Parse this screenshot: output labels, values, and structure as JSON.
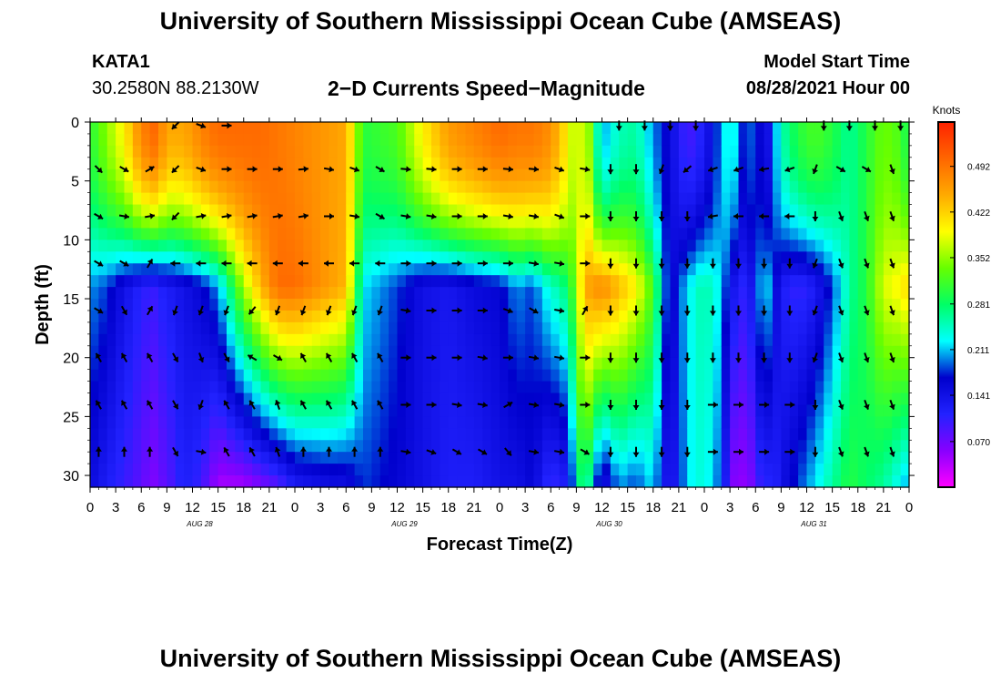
{
  "header": {
    "title": "University of Southern Mississippi Ocean Cube (AMSEAS)",
    "station": "KATA1",
    "coordinates": "30.2580N  88.2130W",
    "subtitle": "2−D Currents Speed−Magnitude",
    "start_label": "Model Start Time",
    "start_value": "08/28/2021 Hour 00"
  },
  "footer": {
    "title": "University of Southern Mississippi Ocean Cube (AMSEAS)"
  },
  "chart_data": {
    "type": "heatmap",
    "title": "2−D Currents Speed−Magnitude",
    "xlabel": "Forecast Time(Z)",
    "ylabel": "Depth (ft)",
    "xlim": [
      0,
      96
    ],
    "ylim": [
      0,
      31
    ],
    "x_ticks": [
      0,
      3,
      6,
      9,
      12,
      15,
      18,
      21,
      24,
      27,
      30,
      33,
      36,
      39,
      42,
      45,
      48,
      51,
      54,
      57,
      60,
      63,
      66,
      69,
      72,
      75,
      78,
      81,
      84,
      87,
      90,
      93,
      96
    ],
    "x_tick_labels": [
      "0",
      "3",
      "6",
      "9",
      "12",
      "15",
      "18",
      "21",
      "0",
      "3",
      "6",
      "9",
      "12",
      "15",
      "18",
      "21",
      "0",
      "3",
      "6",
      "9",
      "12",
      "15",
      "18",
      "21",
      "0",
      "3",
      "6",
      "9",
      "12",
      "15",
      "18",
      "21",
      "0"
    ],
    "date_labels": [
      {
        "x": 12,
        "label": "AUG 28"
      },
      {
        "x": 36,
        "label": "AUG 29"
      },
      {
        "x": 60,
        "label": "AUG 30"
      },
      {
        "x": 84,
        "label": "AUG 31"
      }
    ],
    "y_ticks": [
      0,
      5,
      10,
      15,
      20,
      25,
      30
    ],
    "y_tick_labels": [
      "0",
      "5",
      "10",
      "15",
      "20",
      "25",
      "30"
    ],
    "colorbar": {
      "title": "Knots",
      "range": [
        0,
        0.56
      ],
      "tick_labels": [
        "0.492",
        "0.422",
        "0.352",
        "0.281",
        "0.211",
        "0.141",
        "0.070"
      ],
      "tick_values": [
        0.492,
        0.422,
        0.352,
        0.281,
        0.211,
        0.141,
        0.07
      ],
      "colors": [
        "#ff00ff",
        "#8800ff",
        "#2222ff",
        "#0000cc",
        "#00ffff",
        "#00ff66",
        "#66ff00",
        "#ffff00",
        "#ffaa00",
        "#ff6600",
        "#ff2200"
      ]
    },
    "speed_profiles": {
      "x": [
        0,
        2,
        4,
        6,
        7.4,
        7.8,
        9,
        11,
        13,
        15,
        18,
        20,
        22,
        24,
        28,
        30,
        32,
        36,
        39,
        42,
        45,
        48,
        50,
        52,
        53,
        54,
        56,
        57,
        58,
        60,
        62,
        64,
        66,
        68,
        70,
        72,
        74,
        75,
        77,
        78,
        79,
        80,
        81,
        83,
        85,
        87,
        89,
        91,
        93,
        95,
        96
      ],
      "surface_knots": [
        0.3,
        0.35,
        0.4,
        0.48,
        0.5,
        0.5,
        0.45,
        0.45,
        0.48,
        0.5,
        0.5,
        0.5,
        0.49,
        0.48,
        0.46,
        0.45,
        0.3,
        0.32,
        0.4,
        0.46,
        0.48,
        0.5,
        0.49,
        0.49,
        0.48,
        0.47,
        0.4,
        0.35,
        0.4,
        0.2,
        0.25,
        0.26,
        0.2,
        0.15,
        0.09,
        0.12,
        0.2,
        0.25,
        0.15,
        0.22,
        0.1,
        0.18,
        0.25,
        0.3,
        0.32,
        0.3,
        0.26,
        0.3,
        0.34,
        0.32,
        0.28
      ],
      "middle_knots": [
        0.2,
        0.18,
        0.14,
        0.11,
        0.1,
        0.11,
        0.12,
        0.14,
        0.16,
        0.2,
        0.36,
        0.44,
        0.5,
        0.5,
        0.46,
        0.44,
        0.22,
        0.18,
        0.14,
        0.13,
        0.15,
        0.16,
        0.2,
        0.18,
        0.22,
        0.24,
        0.28,
        0.35,
        0.45,
        0.48,
        0.44,
        0.4,
        0.32,
        0.14,
        0.22,
        0.26,
        0.22,
        0.14,
        0.1,
        0.16,
        0.24,
        0.18,
        0.12,
        0.1,
        0.12,
        0.18,
        0.26,
        0.3,
        0.38,
        0.4,
        0.42
      ],
      "bottom_knots": [
        0.15,
        0.12,
        0.1,
        0.08,
        0.06,
        0.07,
        0.08,
        0.12,
        0.1,
        0.04,
        0.04,
        0.06,
        0.08,
        0.12,
        0.14,
        0.14,
        0.18,
        0.16,
        0.14,
        0.12,
        0.12,
        0.14,
        0.14,
        0.16,
        0.12,
        0.1,
        0.12,
        0.24,
        0.3,
        0.12,
        0.2,
        0.18,
        0.22,
        0.1,
        0.22,
        0.24,
        0.18,
        0.06,
        0.05,
        0.08,
        0.12,
        0.1,
        0.14,
        0.18,
        0.22,
        0.26,
        0.3,
        0.28,
        0.26,
        0.22,
        0.2
      ]
    },
    "vector_depths_ft": [
      4,
      8,
      12,
      16,
      20,
      24,
      28
    ],
    "vector_times": [
      1,
      4,
      7,
      10,
      13,
      16,
      19,
      22,
      25,
      28,
      31,
      34,
      37,
      40,
      43,
      46,
      49,
      52,
      55,
      58,
      61,
      64,
      67,
      70,
      73,
      76,
      79,
      82,
      85,
      88,
      91,
      94
    ],
    "surface_vector_times": [
      9,
      12,
      15,
      61,
      64,
      67,
      70,
      85,
      88,
      91,
      94
    ],
    "vector_direction_deg": [
      [
        135,
        120,
        60,
        225,
        110,
        90,
        90,
        90,
        85,
        100,
        110,
        120,
        95,
        95,
        90,
        90,
        95,
        95,
        110,
        100,
        180,
        180,
        200,
        230,
        250,
        250,
        260,
        250,
        200,
        120,
        120,
        160
      ],
      [
        120,
        100,
        80,
        225,
        80,
        80,
        80,
        80,
        80,
        90,
        100,
        120,
        100,
        100,
        90,
        90,
        100,
        100,
        110,
        90,
        180,
        180,
        180,
        180,
        260,
        270,
        270,
        270,
        180,
        160,
        160,
        160
      ],
      [
        120,
        120,
        30,
        270,
        270,
        270,
        270,
        270,
        270,
        270,
        270,
        270,
        90,
        90,
        90,
        90,
        90,
        100,
        100,
        90,
        180,
        180,
        180,
        180,
        180,
        180,
        180,
        180,
        200,
        160,
        160,
        160
      ],
      [
        120,
        150,
        30,
        200,
        200,
        200,
        220,
        200,
        200,
        200,
        200,
        200,
        100,
        90,
        90,
        90,
        110,
        120,
        100,
        30,
        180,
        180,
        180,
        180,
        180,
        180,
        180,
        180,
        200,
        160,
        160,
        160
      ],
      [
        330,
        330,
        330,
        150,
        160,
        150,
        300,
        120,
        330,
        330,
        330,
        330,
        90,
        90,
        90,
        100,
        90,
        100,
        100,
        90,
        180,
        180,
        180,
        180,
        180,
        180,
        180,
        180,
        200,
        160,
        160,
        160
      ],
      [
        330,
        330,
        330,
        150,
        200,
        330,
        330,
        340,
        330,
        330,
        330,
        330,
        90,
        90,
        100,
        100,
        60,
        100,
        100,
        90,
        180,
        180,
        180,
        180,
        90,
        90,
        90,
        90,
        180,
        160,
        160,
        160
      ],
      [
        360,
        360,
        360,
        150,
        100,
        330,
        330,
        340,
        360,
        360,
        360,
        360,
        100,
        110,
        120,
        120,
        140,
        100,
        100,
        120,
        180,
        180,
        180,
        180,
        90,
        90,
        90,
        90,
        180,
        160,
        160,
        160
      ]
    ]
  }
}
